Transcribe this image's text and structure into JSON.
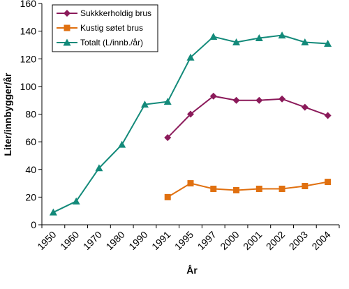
{
  "chart_data": {
    "type": "line",
    "categories": [
      "1950",
      "1960",
      "1970",
      "1980",
      "1990",
      "1991",
      "1995",
      "1997",
      "2000",
      "2001",
      "2002",
      "2003",
      "2004"
    ],
    "series": [
      {
        "name": "Sukkkerholdig brus",
        "color": "#8B1A5A",
        "marker": "diamond",
        "values": [
          null,
          null,
          null,
          null,
          null,
          63,
          80,
          93,
          90,
          90,
          91,
          85,
          79
        ]
      },
      {
        "name": "Kustig søtet brus",
        "color": "#E07010",
        "marker": "square",
        "values": [
          null,
          null,
          null,
          null,
          null,
          20,
          30,
          26,
          25,
          26,
          26,
          28,
          31
        ]
      },
      {
        "name": "Totalt (L/innb./år)",
        "color": "#138A7A",
        "marker": "triangle",
        "values": [
          9,
          17,
          41,
          58,
          87,
          89,
          121,
          136,
          132,
          135,
          137,
          132,
          131
        ]
      }
    ],
    "xlabel": "År",
    "ylabel": "Liter/innbygger/år",
    "ylim": [
      0,
      160
    ],
    "yticks": [
      "0",
      "20",
      "40",
      "60",
      "80",
      "100",
      "120",
      "140",
      "160"
    ],
    "grid": false,
    "legend": "top-left"
  }
}
